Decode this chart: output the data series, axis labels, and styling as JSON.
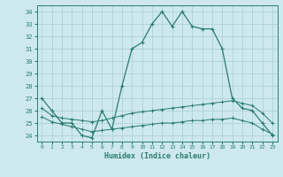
{
  "xlabel": "Humidex (Indice chaleur)",
  "x": [
    0,
    1,
    2,
    3,
    4,
    5,
    6,
    7,
    8,
    9,
    10,
    11,
    12,
    13,
    14,
    15,
    16,
    17,
    18,
    19,
    20,
    21,
    22,
    23
  ],
  "line_max": [
    27,
    26,
    25,
    25,
    24,
    23.8,
    26,
    24.5,
    28,
    31,
    31.5,
    33,
    34,
    32.8,
    34,
    32.8,
    32.6,
    32.6,
    31,
    27,
    26.2,
    26,
    25,
    24
  ],
  "line_mean": [
    26.2,
    25.6,
    25.4,
    25.3,
    25.2,
    25.1,
    25.2,
    25.4,
    25.6,
    25.8,
    25.9,
    26.0,
    26.1,
    26.2,
    26.3,
    26.4,
    26.5,
    26.6,
    26.7,
    26.8,
    26.6,
    26.4,
    25.8,
    25.0
  ],
  "line_min": [
    25.5,
    25.1,
    24.9,
    24.7,
    24.5,
    24.3,
    24.4,
    24.5,
    24.6,
    24.7,
    24.8,
    24.9,
    25.0,
    25.0,
    25.1,
    25.2,
    25.2,
    25.3,
    25.3,
    25.4,
    25.2,
    25.0,
    24.5,
    24.1
  ],
  "color": "#2a7d6e",
  "bg_color": "#cde8ee",
  "grid_color": "#aacdd6",
  "ylim": [
    23.5,
    34.5
  ],
  "xlim": [
    -0.5,
    23.5
  ],
  "yticks": [
    24,
    25,
    26,
    27,
    28,
    29,
    30,
    31,
    32,
    33,
    34
  ],
  "xticks": [
    0,
    1,
    2,
    3,
    4,
    5,
    6,
    7,
    8,
    9,
    10,
    11,
    12,
    13,
    14,
    15,
    16,
    17,
    18,
    19,
    20,
    21,
    22,
    23
  ]
}
